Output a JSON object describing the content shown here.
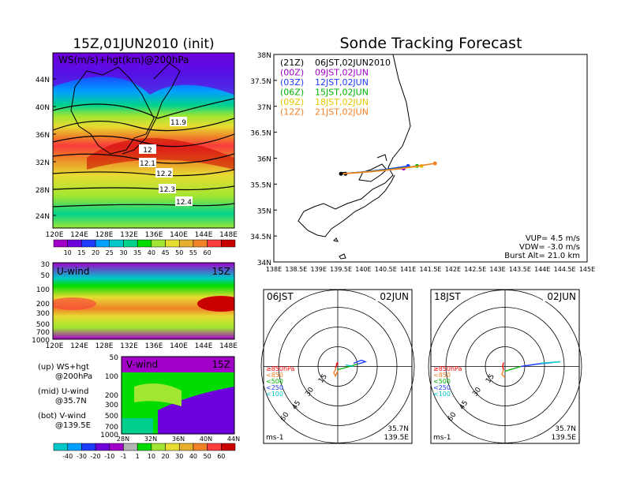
{
  "left_title": "15Z,01JUN2010 (init)",
  "right_title": "Sonde Tracking Forecast",
  "map_panel": {
    "label": "WS(m/s)+hgt(km)@200hPa",
    "lat_ticks": [
      "44N",
      "40N",
      "36N",
      "32N",
      "28N",
      "24N"
    ],
    "lon_ticks": [
      "120E",
      "124E",
      "128E",
      "132E",
      "136E",
      "140E",
      "144E",
      "148E"
    ],
    "contour_labels": [
      "11.9",
      "12",
      "12.1",
      "12.2",
      "12.3",
      "12.4"
    ],
    "colorbar_ticks": [
      "10",
      "15",
      "20",
      "25",
      "30",
      "35",
      "40",
      "45",
      "50",
      "55",
      "60"
    ],
    "colorbar_colors": [
      "#a000c8",
      "#6e00dc",
      "#1e3cff",
      "#00a0ff",
      "#00c8c8",
      "#00d28c",
      "#00dc00",
      "#a0e632",
      "#e6dc32",
      "#e6af2d",
      "#f08228",
      "#fa3c3c",
      "#c80000"
    ]
  },
  "u_panel": {
    "label": "U-wind",
    "time": "15Z",
    "p_ticks": [
      "30",
      "50",
      "100",
      "200",
      "300",
      "500",
      "700",
      "1000"
    ],
    "lon_ticks": [
      "120E",
      "124E",
      "128E",
      "132E",
      "136E",
      "140E",
      "144E",
      "148E"
    ]
  },
  "v_panel": {
    "label": "V-wind",
    "time": "15Z",
    "p_ticks": [
      "50",
      "100",
      "200",
      "300",
      "500",
      "700",
      "1000"
    ],
    "lat_ticks": [
      "28N",
      "32N",
      "36N",
      "40N",
      "44N"
    ],
    "colorbar_ticks": [
      "-40",
      "-30",
      "-20",
      "-10",
      "-1",
      "1",
      "10",
      "20",
      "30",
      "40",
      "50",
      "60"
    ],
    "colorbar_colors": [
      "#00c8c8",
      "#00a0ff",
      "#1e3cff",
      "#6e00dc",
      "#a000c8",
      "#b4b4b4",
      "#00dc00",
      "#a0e632",
      "#e6dc32",
      "#e6af2d",
      "#f08228",
      "#fa3c3c",
      "#c80000"
    ]
  },
  "legend_notes": [
    {
      "a": "(up) WS+hgt",
      "b": "@200hPa"
    },
    {
      "a": "(mid) U-wind",
      "b": "@35.7N"
    },
    {
      "a": "(bot) V-wind",
      "b": "@139.5E"
    }
  ],
  "track_panel": {
    "lat_ticks": [
      "38N",
      "37.5N",
      "37N",
      "36.5N",
      "36N",
      "35.5N",
      "35N",
      "34.5N",
      "34N"
    ],
    "lon_ticks": [
      "138E",
      "138.5E",
      "139E",
      "139.5E",
      "140E",
      "140.5E",
      "141E",
      "141.5E",
      "142E",
      "142.5E",
      "143E",
      "143.5E",
      "144E",
      "144.5E",
      "145E"
    ],
    "legend": [
      {
        "z": "(21Z)",
        "t": "06JST,02JUN2010",
        "color": "#000000"
      },
      {
        "z": "(00Z)",
        "t": "09JST,02JUN",
        "color": "#a000c8"
      },
      {
        "z": "(03Z)",
        "t": "12JST,02JUN",
        "color": "#1e3cff"
      },
      {
        "z": "(06Z)",
        "t": "15JST,02JUN",
        "color": "#00b400"
      },
      {
        "z": "(09Z)",
        "t": "18JST,02JUN",
        "color": "#e6c800"
      },
      {
        "z": "(12Z)",
        "t": "21JST,02JUN",
        "color": "#f08228"
      }
    ],
    "info": [
      "VUP= 4.5 m/s",
      "VDW= -3.0 m/s",
      "Burst Alt= 21.0 km"
    ]
  },
  "polar_left": {
    "time": "06JST",
    "date": "02JUN",
    "lat": "35.7N",
    "lon": "139.5E",
    "unit": "ms-1",
    "rings": [
      "15",
      "30",
      "45",
      "60"
    ],
    "levels": [
      "≥850hPa",
      "<850",
      "<500",
      "<250",
      "<100"
    ]
  },
  "polar_right": {
    "time": "18JST",
    "date": "02JUN",
    "lat": "35.7N",
    "lon": "139.5E",
    "unit": "ms-1",
    "rings": [
      "15",
      "30",
      "45",
      "60"
    ],
    "levels": [
      "≥850hPa",
      "<850",
      "<500",
      "<250",
      "<100"
    ]
  },
  "level_colors": [
    "#fa0000",
    "#f08228",
    "#00b400",
    "#1e3cff",
    "#00c8c8"
  ],
  "chart_data": [
    {
      "type": "heatmap",
      "title": "15Z,01JUN2010 (init)",
      "label": "WS(m/s)+hgt(km)@200hPa",
      "x_range": [
        "120E",
        "148E"
      ],
      "y_range": [
        "24N",
        "44N"
      ],
      "contours": [
        11.9,
        12,
        12.1,
        12.2,
        12.3,
        12.4
      ],
      "colorbar": [
        10,
        15,
        20,
        25,
        30,
        35,
        40,
        45,
        50,
        55,
        60
      ]
    },
    {
      "type": "heatmap",
      "label": "U-wind",
      "time": "15Z",
      "note": "@35.7N",
      "x_range": [
        "120E",
        "148E"
      ],
      "y_levels_hPa": [
        30,
        50,
        100,
        200,
        300,
        500,
        700,
        1000
      ]
    },
    {
      "type": "heatmap",
      "label": "V-wind",
      "time": "15Z",
      "note": "@139.5E",
      "x_range": [
        "28N",
        "44N"
      ],
      "y_levels_hPa": [
        50,
        100,
        200,
        300,
        500,
        700,
        1000
      ],
      "colorbar": [
        -40,
        -30,
        -20,
        -10,
        -1,
        1,
        10,
        20,
        30,
        40,
        50,
        60
      ]
    },
    {
      "type": "line",
      "title": "Sonde Tracking Forecast",
      "xlim": [
        138,
        145
      ],
      "ylim": [
        34,
        38
      ],
      "launch": [
        139.5,
        35.7
      ],
      "series": [
        {
          "name": "21Z",
          "end": [
            139.6,
            35.7
          ]
        },
        {
          "name": "00Z",
          "end": [
            140.9,
            35.8
          ]
        },
        {
          "name": "03Z",
          "end": [
            141.0,
            35.85
          ]
        },
        {
          "name": "06Z",
          "end": [
            141.2,
            35.85
          ]
        },
        {
          "name": "09Z",
          "end": [
            141.3,
            35.85
          ]
        },
        {
          "name": "12Z",
          "end": [
            141.6,
            35.9
          ]
        }
      ],
      "VUP": 4.5,
      "VDW": -3.0,
      "burst_alt_km": 21.0
    }
  ]
}
